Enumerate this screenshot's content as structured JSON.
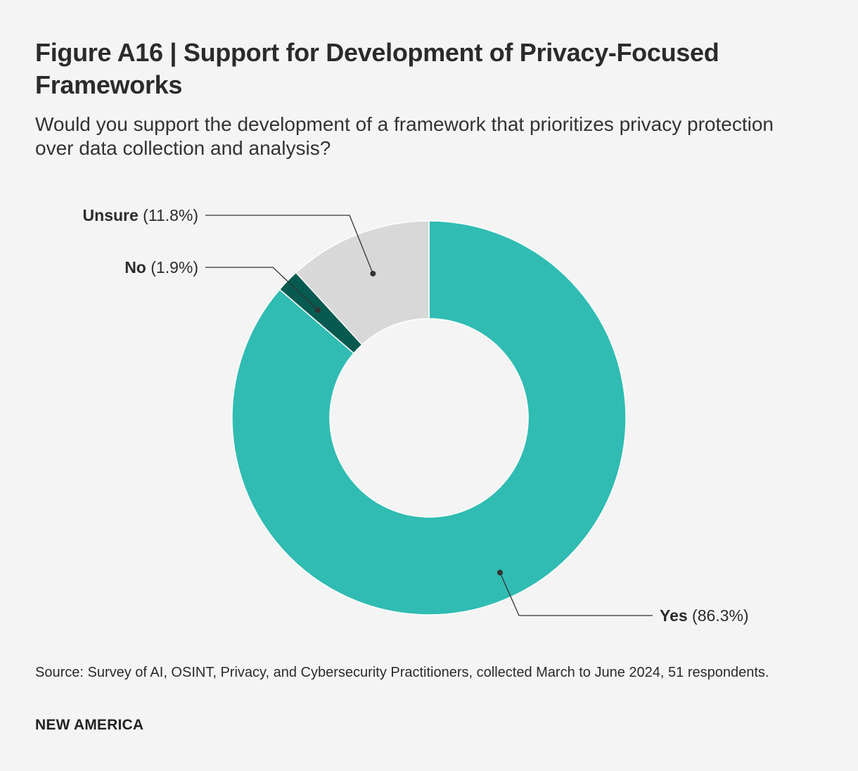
{
  "title": "Figure A16 | Support for Development of Privacy-Focused Frameworks",
  "subtitle": "Would you support the development of a framework that prioritizes privacy protection over data collection and analysis?",
  "source": "Source: Survey of AI, OSINT, Privacy, and Cybersecurity Practitioners, collected March to June 2024, 51 respondents.",
  "brand": "NEW AMERICA",
  "colors": {
    "yes": "#31bcb3",
    "no": "#075a50",
    "unsure": "#d8d8d8",
    "leader": "#333333"
  },
  "chart_data": {
    "type": "pie",
    "variant": "donut",
    "title": "Figure A16 | Support for Development of Privacy-Focused Frameworks",
    "slices": [
      {
        "key": "yes",
        "label": "Yes",
        "value": 86.3,
        "value_label": "(86.3%)"
      },
      {
        "key": "no",
        "label": "No",
        "value": 1.9,
        "value_label": "(1.9%)"
      },
      {
        "key": "unsure",
        "label": "Unsure",
        "value": 11.8,
        "value_label": "(11.8%)"
      }
    ],
    "start": "12 o'clock",
    "direction": "clockwise",
    "label_style": "leader lines"
  }
}
